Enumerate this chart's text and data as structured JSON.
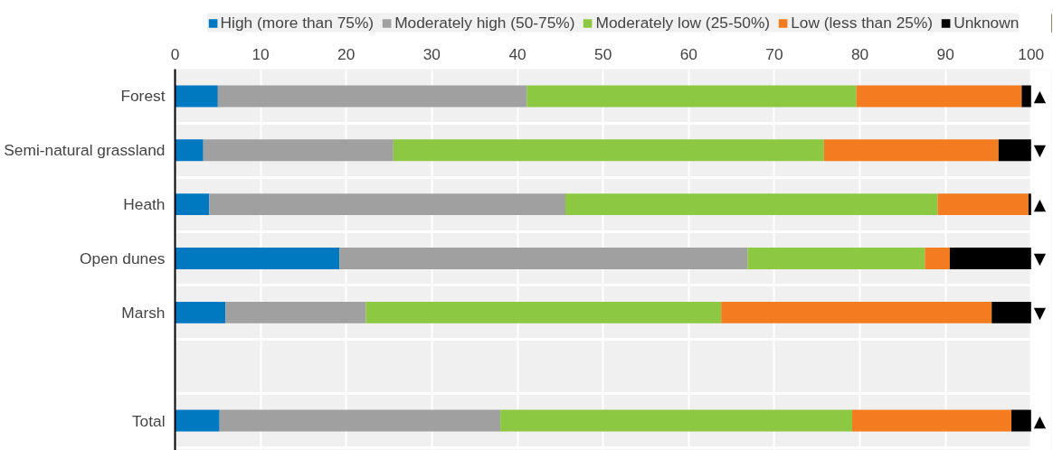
{
  "chart_data": {
    "type": "bar",
    "orientation": "horizontal",
    "stacked": true,
    "categories": [
      "Forest",
      "Semi-natural grassland",
      "Heath",
      "Open dunes",
      "Marsh",
      null,
      "Total"
    ],
    "series": [
      {
        "name": "High (more than 75%)",
        "color": "#0079c1",
        "values": [
          5.0,
          3.3,
          4.0,
          19.2,
          5.9,
          null,
          5.2
        ]
      },
      {
        "name": "Moderately high (50-75%)",
        "color": "#a0a0a0",
        "values": [
          36.1,
          22.2,
          41.6,
          47.7,
          16.4,
          null,
          32.8
        ]
      },
      {
        "name": "Moderately low (25-50%)",
        "color": "#8cc841",
        "values": [
          38.5,
          50.3,
          43.5,
          20.7,
          41.5,
          null,
          41.1
        ]
      },
      {
        "name": "Low (less than 25%)",
        "color": "#f47c20",
        "values": [
          19.3,
          20.4,
          10.6,
          2.9,
          31.6,
          null,
          18.6
        ]
      },
      {
        "name": "Unknown",
        "color": "#000000",
        "values": [
          1.1,
          3.8,
          0.3,
          9.5,
          4.6,
          null,
          2.3
        ]
      }
    ],
    "xlim": [
      0,
      100
    ],
    "xticks": [
      0,
      10,
      20,
      30,
      40,
      50,
      60,
      70,
      80,
      90,
      100
    ],
    "grid": true,
    "legend": "top",
    "annotations": [
      "▲",
      "▼",
      "▲",
      "▼",
      "▼",
      "▲"
    ]
  }
}
